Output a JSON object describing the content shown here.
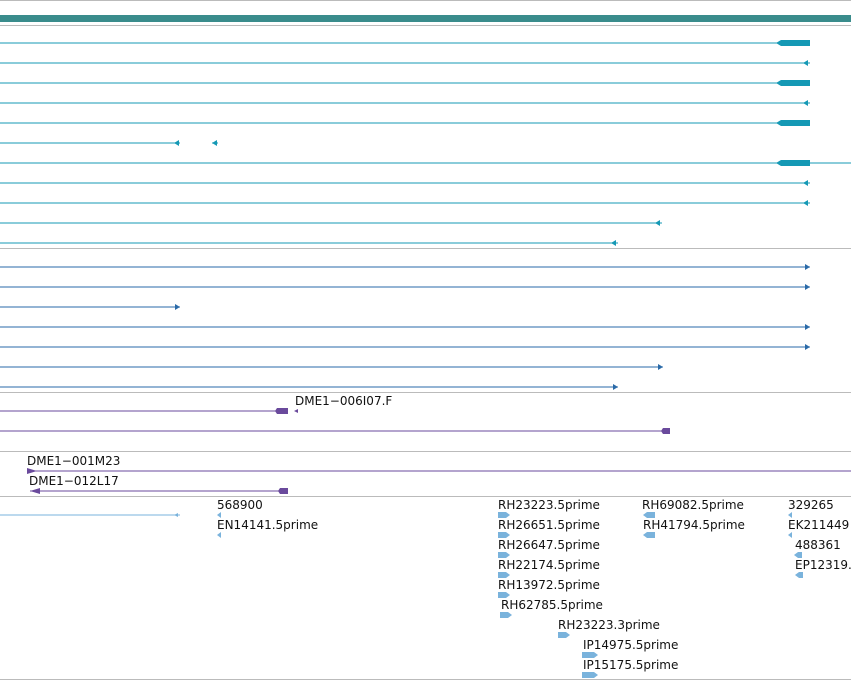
{
  "colors": {
    "header_bar": "#3a8c8c",
    "teal_track": "#1599b5",
    "blue_track": "#2a6aa8",
    "purple_track": "#6a4a9c",
    "est_track": "#7ab3dc",
    "separator": "#bbbbbb"
  },
  "tracks": {
    "teal_transcripts": [
      {
        "cds": true
      },
      {
        "cds": false
      },
      {
        "cds": true
      },
      {
        "cds": false
      },
      {
        "cds": true
      },
      {
        "cds": false,
        "split": true
      },
      {
        "cds": true
      },
      {
        "cds": false
      },
      {
        "cds": false
      },
      {
        "cds": false
      },
      {
        "cds": false
      }
    ],
    "blue_transcripts": [
      {},
      {},
      {},
      {},
      {},
      {},
      {}
    ],
    "purple_clones": [
      {
        "label": "DME1−006I07.F"
      },
      {
        "label": ""
      },
      {
        "label": ""
      },
      {
        "label": "DME1−001M23"
      },
      {
        "label": "DME1−012L17"
      }
    ],
    "est_labels": [
      "568900",
      "EN14141.5prime",
      "RH23223.5prime",
      "RH26651.5prime",
      "RH26647.5prime",
      "RH22174.5prime",
      "RH13972.5prime",
      "RH62785.5prime",
      "RH23223.3prime",
      "IP14975.5prime",
      "IP15175.5prime",
      "RH69082.5prime",
      "RH41794.5prime",
      "329265",
      "EK211449",
      "488361",
      "EP12319."
    ]
  }
}
